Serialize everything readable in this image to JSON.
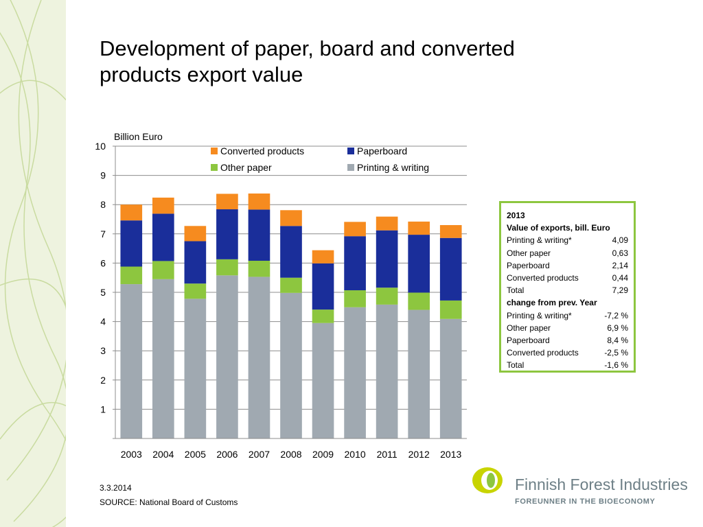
{
  "slide": {
    "title_line1": "Development of paper, board and converted",
    "title_line2": "products export value",
    "date": "3.3.2014",
    "source": "SOURCE: National Board of Customs"
  },
  "chart_data": {
    "type": "bar",
    "stacked": true,
    "ylabel": "Billion Euro",
    "ylim": [
      0,
      10
    ],
    "yticks": [
      1,
      2,
      3,
      4,
      5,
      6,
      7,
      8,
      9,
      10
    ],
    "grid": true,
    "legend_position": "top-center",
    "categories": [
      "2003",
      "2004",
      "2005",
      "2006",
      "2007",
      "2008",
      "2009",
      "2010",
      "2011",
      "2012",
      "2013"
    ],
    "series": [
      {
        "name": "Printing & writing",
        "color": "#a0a9b1",
        "values": [
          5.28,
          5.45,
          4.78,
          5.58,
          5.53,
          4.98,
          3.95,
          4.49,
          4.58,
          4.4,
          4.09
        ]
      },
      {
        "name": "Other paper",
        "color": "#8dc63f",
        "values": [
          0.6,
          0.62,
          0.52,
          0.55,
          0.55,
          0.52,
          0.46,
          0.58,
          0.58,
          0.59,
          0.63
        ]
      },
      {
        "name": "Paperboard",
        "color": "#1a2e9a",
        "values": [
          1.58,
          1.62,
          1.45,
          1.71,
          1.75,
          1.77,
          1.58,
          1.85,
          1.96,
          1.98,
          2.14
        ]
      },
      {
        "name": "Converted products",
        "color": "#f68b1f",
        "values": [
          0.54,
          0.55,
          0.52,
          0.53,
          0.55,
          0.54,
          0.45,
          0.49,
          0.47,
          0.45,
          0.44
        ]
      }
    ],
    "legend_order": [
      "Converted products",
      "Paperboard",
      "Other paper",
      "Printing & writing"
    ]
  },
  "infobox": {
    "year": "2013",
    "value_header": "Value of exports, bill. Euro",
    "values": [
      {
        "label": "Printing & writing*",
        "value": "4,09"
      },
      {
        "label": "Other paper",
        "value": "0,63"
      },
      {
        "label": "Paperboard",
        "value": "2,14"
      },
      {
        "label": "Converted products",
        "value": "0,44"
      },
      {
        "label": "Total",
        "value": "7,29"
      }
    ],
    "change_header": "change from prev. Year",
    "changes": [
      {
        "label": "Printing & writing*",
        "value": "-7,2 %"
      },
      {
        "label": "Other paper",
        "value": "6,9 %"
      },
      {
        "label": "Paperboard",
        "value": "8,4 %"
      },
      {
        "label": "Converted products",
        "value": "-2,5 %"
      },
      {
        "label": "Total",
        "value": "-1,6 %"
      }
    ]
  },
  "logo": {
    "name": "Finnish Forest Industries",
    "tagline": "FOREUNNER IN THE BIOECONOMY",
    "name_color": "#6d7f86",
    "accent_color": "#c8d400"
  }
}
